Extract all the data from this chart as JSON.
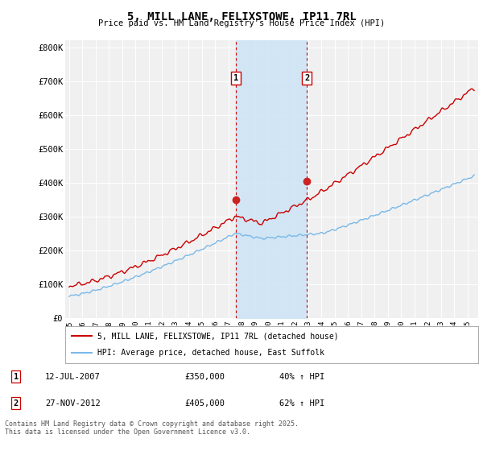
{
  "title": "5, MILL LANE, FELIXSTOWE, IP11 7RL",
  "subtitle": "Price paid vs. HM Land Registry's House Price Index (HPI)",
  "ylabel_ticks": [
    "£0",
    "£100K",
    "£200K",
    "£300K",
    "£400K",
    "£500K",
    "£600K",
    "£700K",
    "£800K"
  ],
  "ytick_values": [
    0,
    100000,
    200000,
    300000,
    400000,
    500000,
    600000,
    700000,
    800000
  ],
  "ylim": [
    0,
    820000
  ],
  "xlim_start": 1994.7,
  "xlim_end": 2025.8,
  "sale1_date": 2007.53,
  "sale1_price": 350000,
  "sale1_label": "1",
  "sale2_date": 2012.91,
  "sale2_price": 405000,
  "sale2_label": "2",
  "hpi_color": "#7ab8e8",
  "price_color": "#cc0000",
  "sale_dot_color": "#cc2222",
  "shade_color": "#cce4f5",
  "legend_line1": "5, MILL LANE, FELIXSTOWE, IP11 7RL (detached house)",
  "legend_line2": "HPI: Average price, detached house, East Suffolk",
  "table_row1": [
    "1",
    "12-JUL-2007",
    "£350,000",
    "40% ↑ HPI"
  ],
  "table_row2": [
    "2",
    "27-NOV-2012",
    "£405,000",
    "62% ↑ HPI"
  ],
  "footer": "Contains HM Land Registry data © Crown copyright and database right 2025.\nThis data is licensed under the Open Government Licence v3.0.",
  "background_color": "#ffffff",
  "plot_bg_color": "#f0f0f0"
}
